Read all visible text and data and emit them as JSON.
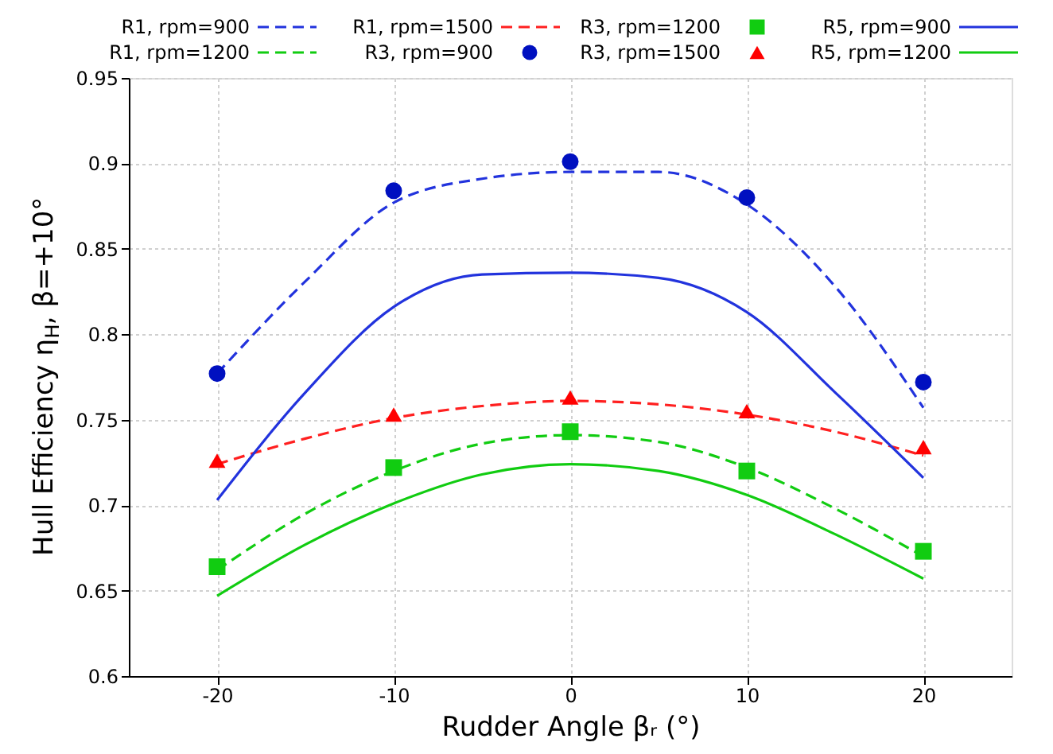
{
  "chart_data": {
    "type": "line",
    "xlabel": "Rudder Angle βᵣ (°)",
    "ylabel": "Hull Efficiency η$_{H}$, β=+10°",
    "xlim": [
      -25,
      25
    ],
    "xticks": [
      -20,
      -10,
      0,
      10,
      20
    ],
    "ylim": [
      0.6,
      0.95
    ],
    "yticks": [
      0.6,
      0.65,
      0.7,
      0.75,
      0.8,
      0.85,
      0.9,
      0.95
    ],
    "grid": true,
    "legend": "top",
    "series": [
      {
        "name": "R1, rpm=900",
        "type": "line",
        "line_style": "dashed",
        "color": "#2233dd",
        "x": [
          -20,
          -15,
          -10,
          -5,
          0,
          5,
          10,
          15,
          20
        ],
        "values": [
          0.777,
          0.831,
          0.877,
          0.891,
          0.895,
          0.895,
          0.876,
          0.828,
          0.757
        ]
      },
      {
        "name": "R1, rpm=1200",
        "type": "line",
        "line_style": "dashed",
        "color": "#11cc11",
        "x": [
          -20,
          -15,
          -10,
          -5,
          0,
          5,
          10,
          15,
          20
        ],
        "values": [
          0.662,
          0.695,
          0.72,
          0.736,
          0.741,
          0.737,
          0.722,
          0.698,
          0.67
        ]
      },
      {
        "name": "R1, rpm=1500",
        "type": "line",
        "line_style": "dashed",
        "color": "#ff2020",
        "x": [
          -20,
          -15,
          -10,
          -5,
          0,
          5,
          10,
          15,
          20
        ],
        "values": [
          0.724,
          0.739,
          0.751,
          0.758,
          0.761,
          0.759,
          0.753,
          0.743,
          0.729
        ]
      },
      {
        "name": "R3, rpm=900",
        "type": "scatter",
        "marker": "circle",
        "color": "#0010c0",
        "x": [
          -20,
          -10,
          0,
          10,
          20
        ],
        "values": [
          0.777,
          0.884,
          0.901,
          0.88,
          0.772
        ]
      },
      {
        "name": "R3, rpm=1200",
        "type": "scatter",
        "marker": "square",
        "color": "#11cc11",
        "x": [
          -20,
          -10,
          0,
          10,
          20
        ],
        "values": [
          0.664,
          0.722,
          0.743,
          0.72,
          0.673
        ]
      },
      {
        "name": "R3, rpm=1500",
        "type": "scatter",
        "marker": "triangle",
        "color": "#ff0000",
        "x": [
          -20,
          -10,
          0,
          10,
          20
        ],
        "values": [
          0.726,
          0.753,
          0.763,
          0.755,
          0.734
        ]
      },
      {
        "name": "R5, rpm=900",
        "type": "line",
        "line_style": "solid",
        "color": "#2233dd",
        "x": [
          -20,
          -15,
          -10,
          -5,
          0,
          5,
          10,
          15,
          20
        ],
        "values": [
          0.703,
          0.766,
          0.816,
          0.835,
          0.836,
          0.833,
          0.813,
          0.766,
          0.716
        ]
      },
      {
        "name": "R5, rpm=1200",
        "type": "line",
        "line_style": "solid",
        "color": "#11cc11",
        "x": [
          -20,
          -15,
          -10,
          -5,
          0,
          5,
          10,
          15,
          20
        ],
        "values": [
          0.647,
          0.677,
          0.701,
          0.718,
          0.724,
          0.72,
          0.706,
          0.683,
          0.657
        ]
      }
    ]
  }
}
